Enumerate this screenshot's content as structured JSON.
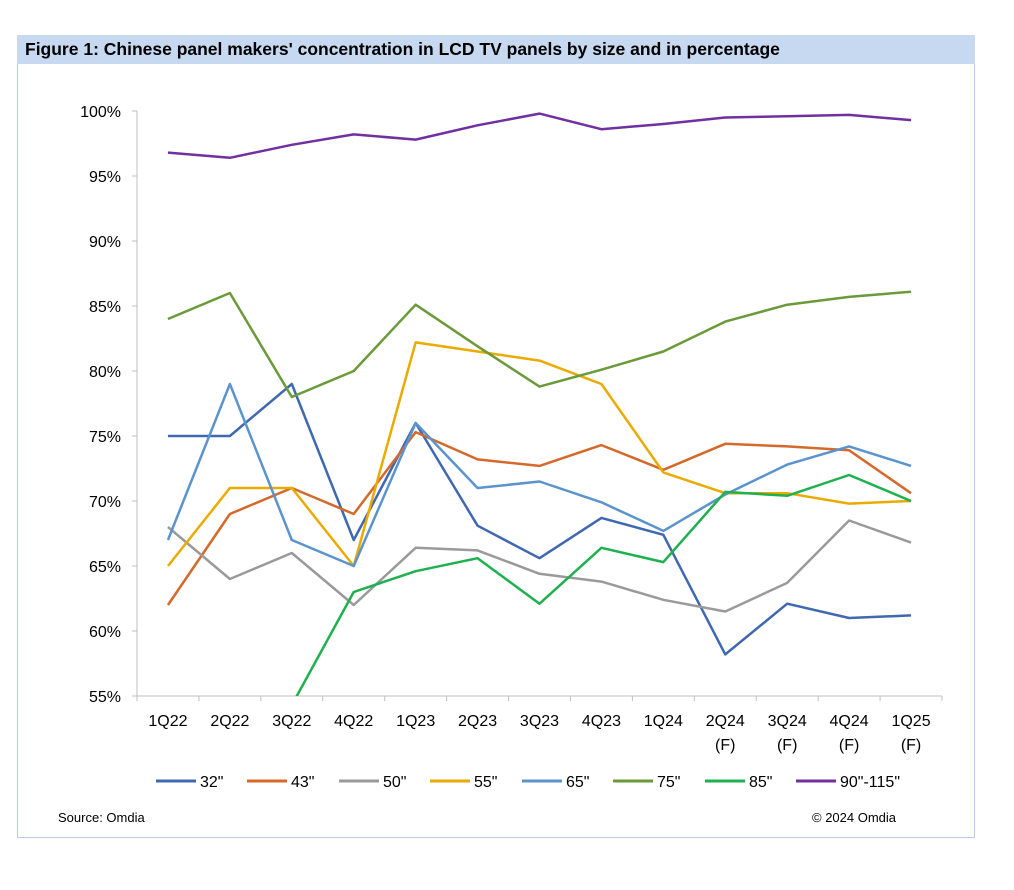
{
  "title": "Figure 1: Chinese panel makers' concentration in LCD TV panels by size and in percentage",
  "source": "Source: Omdia",
  "copyright": "© 2024 Omdia",
  "chart_data": {
    "type": "line",
    "title": "Figure 1: Chinese panel makers' concentration in LCD TV panels by size and in percentage",
    "categories": [
      [
        "1Q22"
      ],
      [
        "2Q22"
      ],
      [
        "3Q22"
      ],
      [
        "4Q22"
      ],
      [
        "1Q23"
      ],
      [
        "2Q23"
      ],
      [
        "3Q23"
      ],
      [
        "4Q23"
      ],
      [
        "1Q24"
      ],
      [
        "2Q24",
        "(F)"
      ],
      [
        "3Q24",
        "(F)"
      ],
      [
        "4Q24",
        "(F)"
      ],
      [
        "1Q25",
        "(F)"
      ]
    ],
    "ylim": [
      55,
      100
    ],
    "yticks": [
      55,
      60,
      65,
      70,
      75,
      80,
      85,
      90,
      95,
      100
    ],
    "ytick_format": "%",
    "grid": false,
    "legend": "bottom",
    "series": [
      {
        "name": "32\"",
        "color": "#4068b0",
        "values": [
          75,
          75,
          79,
          67,
          76,
          68.1,
          65.6,
          68.7,
          67.4,
          58.2,
          62.1,
          61.0,
          61.2
        ]
      },
      {
        "name": "43\"",
        "color": "#d4692a",
        "values": [
          62,
          69,
          71,
          69,
          75.3,
          73.2,
          72.7,
          74.3,
          72.4,
          74.4,
          74.2,
          73.9,
          70.6
        ]
      },
      {
        "name": "50\"",
        "color": "#9a9a9a",
        "values": [
          68,
          64,
          66,
          62,
          66.4,
          66.2,
          64.4,
          63.8,
          62.4,
          61.5,
          63.7,
          68.5,
          66.8
        ]
      },
      {
        "name": "55\"",
        "color": "#eaaa00",
        "values": [
          65,
          71,
          71,
          65,
          82.2,
          81.5,
          80.8,
          79,
          72.2,
          70.6,
          70.6,
          69.8,
          70
        ]
      },
      {
        "name": "65\"",
        "color": "#5b93cf",
        "values": [
          67,
          79,
          67,
          65,
          76,
          71,
          71.5,
          69.9,
          67.7,
          70.5,
          72.8,
          74.2,
          72.7
        ]
      },
      {
        "name": "75\"",
        "color": "#6a9a3a",
        "values": [
          84,
          86,
          78,
          80,
          85.1,
          81.9,
          78.8,
          80.1,
          81.5,
          83.8,
          85.1,
          85.7,
          86.1
        ]
      },
      {
        "name": "85\"",
        "color": "#1fb04f",
        "values": [
          null,
          null,
          54.3,
          63,
          64.6,
          65.6,
          62.1,
          66.4,
          65.3,
          70.7,
          70.4,
          72,
          70
        ]
      },
      {
        "name": "90\"-115\"",
        "color": "#7030a0",
        "values": [
          96.8,
          96.4,
          97.4,
          98.2,
          97.8,
          98.9,
          99.8,
          98.6,
          99,
          99.5,
          99.6,
          99.7,
          99.3
        ]
      }
    ]
  }
}
